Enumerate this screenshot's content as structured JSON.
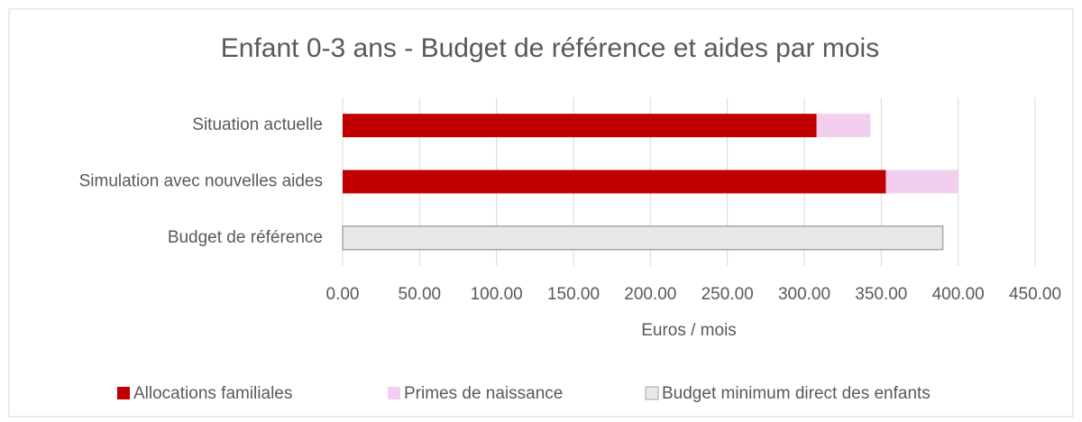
{
  "chart_data": {
    "type": "bar",
    "orientation": "horizontal",
    "stacked": true,
    "title": "Enfant 0-3 ans - Budget de référence et aides par mois",
    "xlabel": "Euros / mois",
    "categories": [
      "Situation actuelle",
      "Simulation avec nouvelles aides",
      "Budget de référence"
    ],
    "series": [
      {
        "name": "Allocations familiales",
        "color": "#c00000",
        "values": [
          308,
          353,
          null
        ]
      },
      {
        "name": "Primes de naissance",
        "color": "#f2cfee",
        "values": [
          35,
          47,
          null
        ]
      },
      {
        "name": "Budget minimum direct des enfants",
        "color": "#e8e8e8",
        "values": [
          null,
          null,
          390
        ]
      }
    ],
    "xlim": [
      0,
      450
    ],
    "xticks": [
      {
        "value": 0,
        "label": "0.00"
      },
      {
        "value": 50,
        "label": "50.00"
      },
      {
        "value": 100,
        "label": "100.00"
      },
      {
        "value": 150,
        "label": "150.00"
      },
      {
        "value": 200,
        "label": "200.00"
      },
      {
        "value": 250,
        "label": "250.00"
      },
      {
        "value": 300,
        "label": "300.00"
      },
      {
        "value": 350,
        "label": "350.00"
      },
      {
        "value": 400,
        "label": "400.00"
      },
      {
        "value": 450,
        "label": "450.00"
      }
    ],
    "grid": true,
    "legend": "bottom"
  }
}
